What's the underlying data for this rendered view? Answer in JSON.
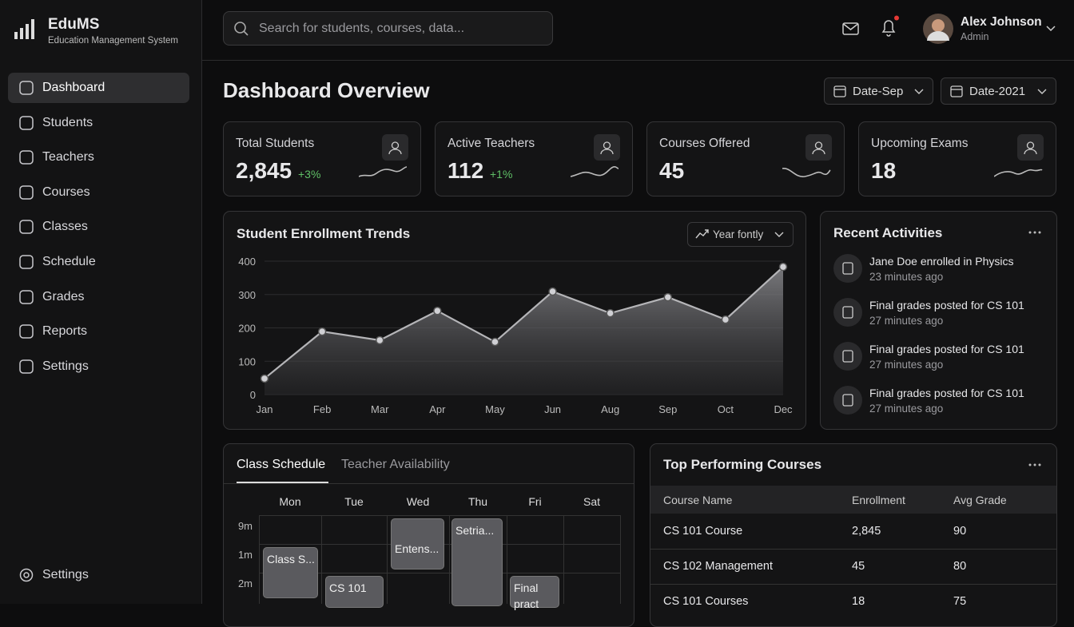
{
  "sidebar": {
    "brand": "EduMS",
    "tagline": "Education Management System",
    "nav": [
      "Dashboard",
      "Students",
      "Teachers",
      "Courses",
      "Classes",
      "Schedule",
      "Grades",
      "Reports",
      "Settings"
    ],
    "footer_item": "Settings"
  },
  "topbar": {
    "search_placeholder": "Search for students, courses, data...",
    "user_name": "Alex Johnson",
    "user_role": "Admin"
  },
  "page": {
    "title": "Dashboard Overview",
    "filters": [
      "Date-Sep",
      "Date-2021"
    ]
  },
  "stats": [
    {
      "label": "Total Students",
      "value": "2,845",
      "change": "+3%"
    },
    {
      "label": "Active Teachers",
      "value": "112",
      "change": "+1%"
    },
    {
      "label": "Courses Offered",
      "value": "45"
    },
    {
      "label": "Upcoming Exams",
      "value": "18"
    }
  ],
  "chart_data": {
    "type": "line",
    "title": "Student Enrollment Trends",
    "dropdown": "Year fontly",
    "categories": [
      "Jan",
      "Feb",
      "Mar",
      "Apr",
      "May",
      "Jun",
      "Aug",
      "Sep",
      "Oct",
      "Dec"
    ],
    "values": [
      48,
      189,
      163,
      251,
      158,
      309,
      244,
      292,
      225,
      383
    ],
    "color": "#b5b5b8",
    "ylim": [
      0,
      400
    ],
    "yticks": [
      0,
      100,
      200,
      300,
      400
    ],
    "grid": true
  },
  "activities": {
    "title": "Recent Activities",
    "items": [
      {
        "text": "Jane Doe enrolled in Physics",
        "time": "23 minutes ago"
      },
      {
        "text": "Final grades posted for CS 101",
        "time": "27 minutes ago"
      },
      {
        "text": "Final grades posted for CS 101",
        "time": "27 minutes ago"
      },
      {
        "text": "Final grades posted for CS 101",
        "time": "27 minutes ago"
      }
    ]
  },
  "schedule": {
    "tabs": [
      "Class Schedule",
      "Teacher Availability"
    ],
    "days": [
      "Mon",
      "Tue",
      "Wed",
      "Thu",
      "Fri",
      "Sat"
    ],
    "times": [
      "9m",
      "1m",
      "2m"
    ],
    "events": [
      "Class S...",
      "CS 101",
      "Entens...",
      "Setria...",
      "Final pract"
    ]
  },
  "courses": {
    "title": "Top Performing Courses",
    "columns": [
      "Course Name",
      "Enrollment",
      "Avg Grade"
    ],
    "rows": [
      [
        "CS 101 Course",
        "2,845",
        "90"
      ],
      [
        "CS 102 Management",
        "45",
        "80"
      ],
      [
        "CS 101 Courses",
        "18",
        "75"
      ]
    ]
  }
}
